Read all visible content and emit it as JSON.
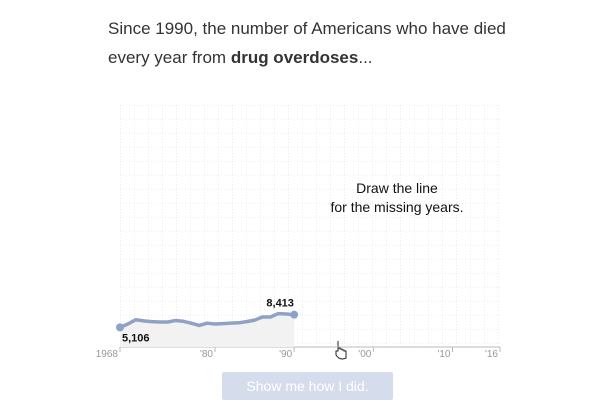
{
  "intro": {
    "text": "Since 1990, the number of Americans who have died every year from ",
    "bold": "drug overdoses",
    "end": "..."
  },
  "chart_data": {
    "type": "line",
    "annotation": [
      "Draw the line",
      "for the missing years."
    ],
    "x": [
      1968,
      1969,
      1970,
      1971,
      1972,
      1973,
      1974,
      1975,
      1976,
      1977,
      1978,
      1979,
      1980,
      1981,
      1982,
      1983,
      1984,
      1985,
      1986,
      1987,
      1988,
      1989,
      1990
    ],
    "values": [
      5106,
      6000,
      7100,
      6800,
      6600,
      6500,
      6500,
      6900,
      6700,
      6200,
      5600,
      6200,
      6000,
      6100,
      6200,
      6300,
      6600,
      7000,
      7800,
      7800,
      8700,
      8600,
      8413
    ],
    "value_labels": [
      "5,106",
      null,
      null,
      null,
      null,
      null,
      null,
      null,
      null,
      null,
      null,
      null,
      null,
      null,
      null,
      null,
      null,
      null,
      null,
      null,
      null,
      null,
      "8,413"
    ],
    "color": "#8fa2c6",
    "xlim": [
      1968,
      2016
    ],
    "ylim": [
      0,
      63000
    ],
    "xticks": [
      1968,
      {
        "value": 1980,
        "label": "'80"
      },
      {
        "value": 1990,
        "label": "'90"
      },
      {
        "value": 2000,
        "label": "'00"
      },
      {
        "value": 2010,
        "label": "'10"
      },
      {
        "value": 2016,
        "label": "'16"
      }
    ],
    "grid": true
  },
  "button": "Show me how I did."
}
